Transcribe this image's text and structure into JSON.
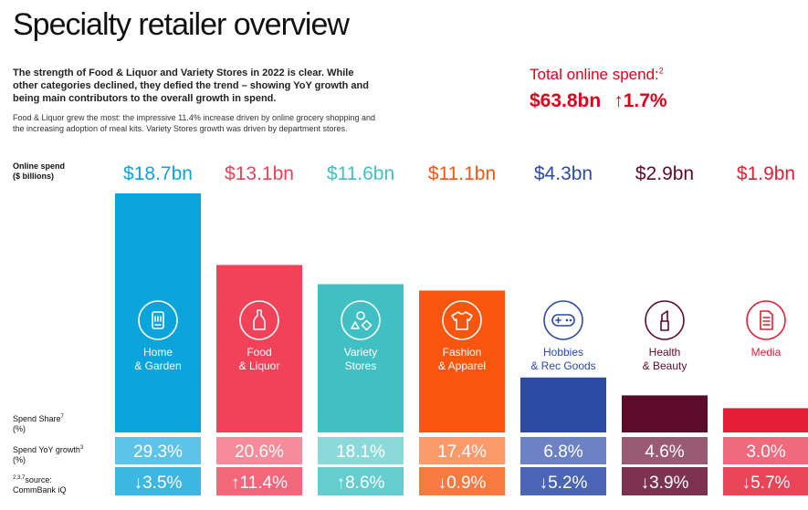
{
  "page": {
    "title": "Specialty retailer overview",
    "intro": "The strength of Food & Liquor and Variety Stores in 2022 is clear. While other categories declined, they defied the trend – showing YoY growth and being main contributors to the overall growth in spend.",
    "detail": "Food & Liquor grew the most: the impressive 11.4% increase driven by online grocery shopping and the increasing adoption of meal kits. Variety Stores growth was driven by department stores.",
    "total_label": "Total online spend:",
    "total_sup": "2",
    "total_value": "$63.8bn",
    "total_growth": "↑1.7%"
  },
  "labels": {
    "online_spend": "Online spend",
    "online_spend_unit": "($ billions)",
    "spend_share": "Spend Share",
    "spend_share_sup": "7",
    "spend_share_unit": "(%)",
    "spend_yoy": "Spend YoY growth",
    "spend_yoy_sup": "3",
    "spend_yoy_unit": "(%)",
    "source_sup": "2,3,7",
    "source": "source:",
    "source_name": "CommBank iQ"
  },
  "chart_data": {
    "type": "bar",
    "title": "Online spend ($ billions)",
    "categories": [
      {
        "label": [
          "Home",
          "& Garden"
        ],
        "value_label": "$18.7bn",
        "value": 18.7,
        "share": "29.3%",
        "share_value": 29.3,
        "growth": "↓3.5%",
        "growth_value": -3.5,
        "icon": "phone-icon",
        "color": "#0ba5db",
        "share_color": "#5dc3e8",
        "growth_color": "#3cb6e2",
        "label_inside": true
      },
      {
        "label": [
          "Food",
          "& Liquor"
        ],
        "value_label": "$13.1bn",
        "value": 13.1,
        "share": "20.6%",
        "share_value": 20.6,
        "growth": "↑11.4%",
        "growth_value": 11.4,
        "icon": "bottle-icon",
        "color": "#f2425a",
        "share_color": "#f68c9b",
        "growth_color": "#f4677b",
        "label_inside": true
      },
      {
        "label": [
          "Variety",
          "Stores"
        ],
        "value_label": "$11.6bn",
        "value": 11.6,
        "share": "18.1%",
        "share_value": 18.1,
        "growth": "↑8.6%",
        "growth_value": 8.6,
        "icon": "shapes-icon",
        "color": "#40c0c2",
        "share_color": "#8cd9da",
        "growth_color": "#66cdce",
        "label_inside": true
      },
      {
        "label": [
          "Fashion",
          "& Apparel"
        ],
        "value_label": "$11.1bn",
        "value": 11.1,
        "share": "17.4%",
        "share_value": 17.4,
        "growth": "↓0.9%",
        "growth_value": -0.9,
        "icon": "tshirt-icon",
        "color": "#f8560e",
        "share_color": "#fb9a6b",
        "growth_color": "#f97a3f",
        "label_inside": true
      },
      {
        "label": [
          "Hobbies",
          "& Rec Goods"
        ],
        "value_label": "$4.3bn",
        "value": 4.3,
        "share": "6.8%",
        "share_value": 6.8,
        "growth": "↓5.2%",
        "growth_value": -5.2,
        "icon": "gamepad-icon",
        "color": "#2c4aa6",
        "share_color": "#6c82c4",
        "growth_color": "#4a64b6",
        "label_inside": false
      },
      {
        "label": [
          "Health",
          "& Beauty"
        ],
        "value_label": "$2.9bn",
        "value": 2.9,
        "share": "4.6%",
        "share_value": 4.6,
        "growth": "↓3.9%",
        "growth_value": -3.9,
        "icon": "lipstick-icon",
        "color": "#5e0a2b",
        "share_color": "#9a5a74",
        "growth_color": "#7c3250",
        "label_inside": false
      },
      {
        "label": [
          "Media"
        ],
        "value_label": "$1.9bn",
        "value": 1.9,
        "share": "3.0%",
        "share_value": 3.0,
        "growth": "↓5.7%",
        "growth_value": -5.7,
        "icon": "document-icon",
        "color": "#e41e36",
        "share_color": "#ef6a7c",
        "growth_color": "#ea4458",
        "label_inside": false
      }
    ]
  }
}
